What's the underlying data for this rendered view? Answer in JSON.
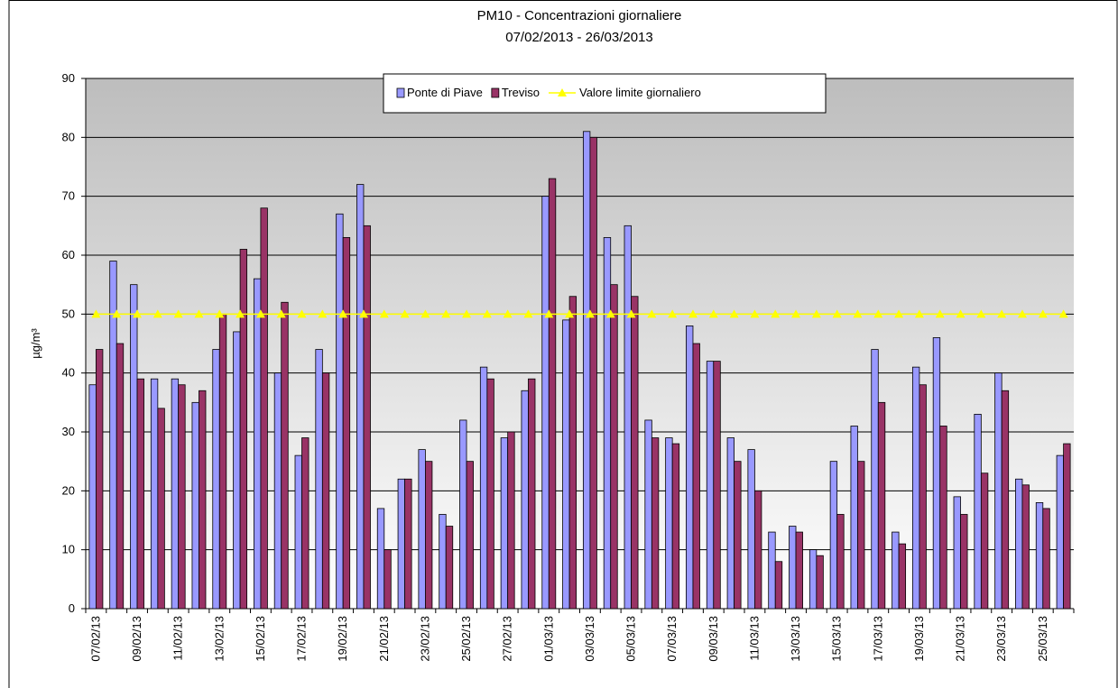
{
  "chart_data": {
    "type": "bar",
    "title": "PM10 - Concentrazioni giornaliere",
    "subtitle": "07/02/2013 - 26/03/2013",
    "y_label": "µg/m³",
    "categories": [
      "07/02/13",
      null,
      "09/02/13",
      null,
      "11/02/13",
      null,
      "13/02/13",
      null,
      "15/02/13",
      null,
      "17/02/13",
      null,
      "19/02/13",
      null,
      "21/02/13",
      null,
      "23/02/13",
      null,
      "25/02/13",
      null,
      "27/02/13",
      null,
      "01/03/13",
      null,
      "03/03/13",
      null,
      "05/03/13",
      null,
      "07/03/13",
      null,
      "09/03/13",
      null,
      "11/03/13",
      null,
      "13/03/13",
      null,
      "15/03/13",
      null,
      "17/03/13",
      null,
      "19/03/13",
      null,
      "21/03/13",
      null,
      "23/03/13",
      null,
      "25/03/13",
      null
    ],
    "series": [
      {
        "name": "Ponte di Piave",
        "type": "bar",
        "color": "#9999ff",
        "values": [
          38,
          59,
          55,
          39,
          39,
          35,
          44,
          47,
          56,
          40,
          26,
          44,
          67,
          72,
          17,
          22,
          27,
          16,
          32,
          41,
          29,
          37,
          70,
          49,
          81,
          63,
          65,
          32,
          29,
          48,
          42,
          29,
          27,
          13,
          14,
          10,
          25,
          31,
          44,
          13,
          41,
          46,
          19,
          33,
          40,
          22,
          18,
          26
        ]
      },
      {
        "name": "Treviso",
        "type": "bar",
        "color": "#993366",
        "values": [
          44,
          45,
          39,
          34,
          38,
          37,
          50,
          61,
          68,
          52,
          29,
          40,
          63,
          65,
          10,
          22,
          25,
          14,
          25,
          39,
          30,
          39,
          73,
          53,
          80,
          55,
          53,
          29,
          28,
          45,
          42,
          25,
          20,
          8,
          13,
          9,
          16,
          25,
          35,
          11,
          38,
          31,
          16,
          23,
          37,
          21,
          17,
          28
        ]
      },
      {
        "name": "Valore limite giornaliero",
        "type": "line",
        "color": "#ffff00",
        "values": [
          50,
          50,
          50,
          50,
          50,
          50,
          50,
          50,
          50,
          50,
          50,
          50,
          50,
          50,
          50,
          50,
          50,
          50,
          50,
          50,
          50,
          50,
          50,
          50,
          50,
          50,
          50,
          50,
          50,
          50,
          50,
          50,
          50,
          50,
          50,
          50,
          50,
          50,
          50,
          50,
          50,
          50,
          50,
          50,
          50,
          50,
          50,
          50
        ]
      }
    ],
    "ylim": [
      0,
      90
    ],
    "yticks": [
      0,
      10,
      20,
      30,
      40,
      50,
      60,
      70,
      80,
      90
    ],
    "grid": true
  }
}
